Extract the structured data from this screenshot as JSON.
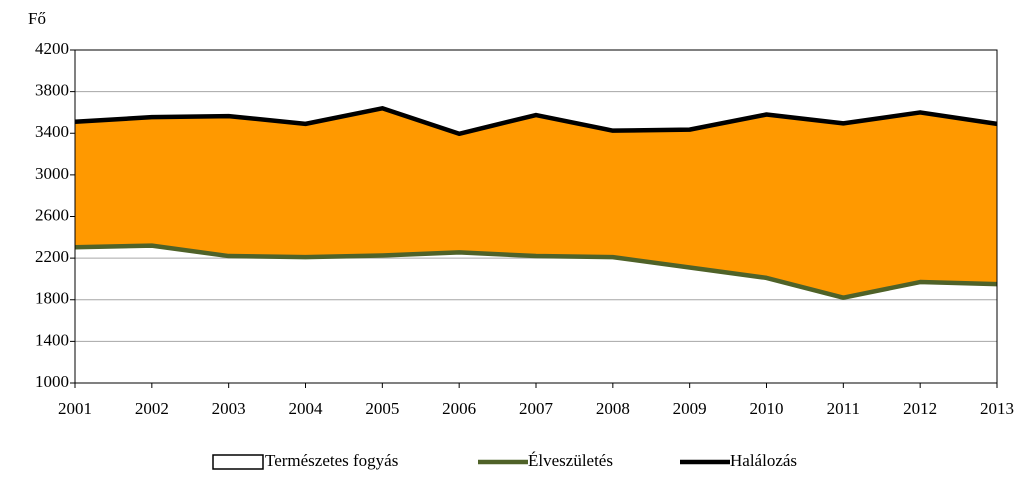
{
  "chart_data": {
    "type": "area-line",
    "ylabel": "Fő",
    "categories": [
      "2001",
      "2002",
      "2003",
      "2004",
      "2005",
      "2006",
      "2007",
      "2008",
      "2009",
      "2010",
      "2011",
      "2012",
      "2013"
    ],
    "series": [
      {
        "name": "Természetes fogyás",
        "color": "#ff9900",
        "stacked_on": "Élveszületés",
        "values": [
          1205,
          1235,
          1345,
          1280,
          1415,
          1140,
          1355,
          1215,
          1325,
          1570,
          1675,
          1630,
          1540
        ]
      },
      {
        "name": "Élveszületés",
        "color": "#4f6228",
        "values": [
          2305,
          2320,
          2220,
          2210,
          2225,
          2255,
          2220,
          2210,
          2110,
          2010,
          1820,
          1970,
          1950
        ]
      },
      {
        "name": "Halálozás",
        "color": "#000000",
        "values": [
          3510,
          3555,
          3565,
          3490,
          3640,
          3395,
          3575,
          3425,
          3435,
          3580,
          3495,
          3600,
          3490
        ]
      }
    ],
    "ylim": [
      1000,
      4200
    ],
    "yticks": [
      1000,
      1400,
      1800,
      2200,
      2600,
      3000,
      3400,
      3800,
      4200
    ],
    "grid": true
  }
}
